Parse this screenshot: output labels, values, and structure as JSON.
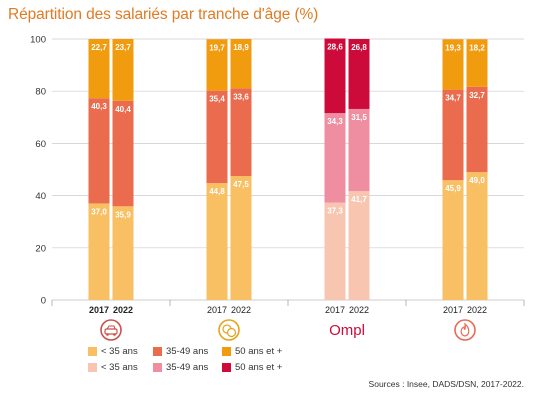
{
  "title": "Répartition des salariés par tranche d'âge (%)",
  "source": "Sources : Insee, DADS/DSN, 2017-2022.",
  "colors": {
    "under35": "#f9bf63",
    "mid": "#ea6b4e",
    "over50": "#f19b0f",
    "ompl_under35": "#f8c6b0",
    "ompl_mid": "#ef8ea1",
    "ompl_over50": "#cd0b3a"
  },
  "legend": {
    "row1": [
      {
        "label": "< 35 ans",
        "color": "#f9bf63"
      },
      {
        "label": "35-49 ans",
        "color": "#ea6b4e"
      },
      {
        "label": "50 ans et +",
        "color": "#f19b0f"
      }
    ],
    "row2": [
      {
        "label": "< 35 ans",
        "color": "#f8c6b0"
      },
      {
        "label": "35-49 ans",
        "color": "#ef8ea1"
      },
      {
        "label": "50 ans et +",
        "color": "#cd0b3a"
      }
    ]
  },
  "group_icons": [
    "car-repair-icon",
    "coins-icon",
    "ompl-logo",
    "flame-icon"
  ],
  "group_logo_text": [
    "",
    "",
    "Ompl",
    ""
  ],
  "chart_data": {
    "type": "bar",
    "stacked": true,
    "ylim": [
      0,
      100
    ],
    "yticks": [
      0,
      20,
      40,
      60,
      80,
      100
    ],
    "grid": true,
    "groups": [
      {
        "palette": "default",
        "categories": [
          "2017",
          "2022"
        ],
        "series": [
          {
            "name": "< 35 ans",
            "values": [
              37.0,
              35.9
            ],
            "labels": [
              "37,0",
              "35,9"
            ]
          },
          {
            "name": "35-49 ans",
            "values": [
              40.3,
              40.4
            ],
            "labels": [
              "40,3",
              "40,4"
            ]
          },
          {
            "name": "50 ans et +",
            "values": [
              22.7,
              23.7
            ],
            "labels": [
              "22,7",
              "23,7"
            ]
          }
        ]
      },
      {
        "palette": "default",
        "categories": [
          "2017",
          "2022"
        ],
        "series": [
          {
            "name": "< 35 ans",
            "values": [
              44.8,
              47.5
            ],
            "labels": [
              "44,8",
              "47,5"
            ]
          },
          {
            "name": "35-49 ans",
            "values": [
              35.4,
              33.6
            ],
            "labels": [
              "35,4",
              "33,6"
            ]
          },
          {
            "name": "50 ans et +",
            "values": [
              19.7,
              18.9
            ],
            "labels": [
              "19,7",
              "18,9"
            ]
          }
        ]
      },
      {
        "palette": "ompl",
        "categories": [
          "2017",
          "2022"
        ],
        "series": [
          {
            "name": "< 35 ans",
            "values": [
              37.3,
              41.7
            ],
            "labels": [
              "37,3",
              "41,7"
            ]
          },
          {
            "name": "35-49 ans",
            "values": [
              34.3,
              31.5
            ],
            "labels": [
              "34,3",
              "31,5"
            ]
          },
          {
            "name": "50 ans et +",
            "values": [
              28.6,
              26.8
            ],
            "labels": [
              "28,6",
              "26,8"
            ]
          }
        ]
      },
      {
        "palette": "default",
        "categories": [
          "2017",
          "2022"
        ],
        "series": [
          {
            "name": "< 35 ans",
            "values": [
              45.9,
              49.0
            ],
            "labels": [
              "45,9",
              "49,0"
            ]
          },
          {
            "name": "35-49 ans",
            "values": [
              34.7,
              32.7
            ],
            "labels": [
              "34,7",
              "32,7"
            ]
          },
          {
            "name": "50 ans et +",
            "values": [
              19.3,
              18.2
            ],
            "labels": [
              "19,3",
              "18,2"
            ]
          }
        ]
      }
    ]
  }
}
